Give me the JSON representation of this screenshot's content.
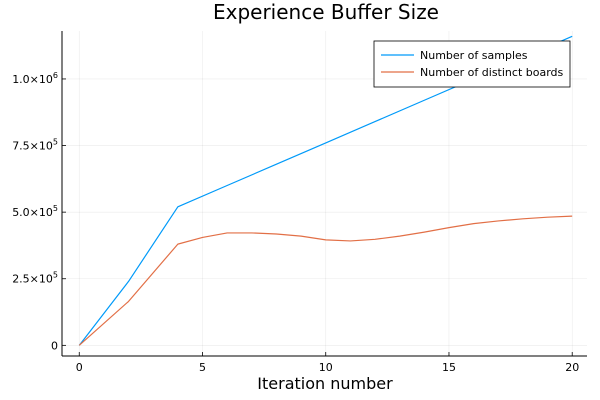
{
  "chart_data": {
    "type": "line",
    "title": "Experience Buffer Size",
    "xlabel": "Iteration number",
    "ylabel": "",
    "xlim": [
      -0.7,
      20.6
    ],
    "ylim": [
      -40000,
      1180000
    ],
    "xticks": [
      {
        "value": 0,
        "label": "0"
      },
      {
        "value": 5,
        "label": "5"
      },
      {
        "value": 10,
        "label": "10"
      },
      {
        "value": 15,
        "label": "15"
      },
      {
        "value": 20,
        "label": "20"
      }
    ],
    "yticks": [
      {
        "value": 0,
        "mant": "0",
        "exp": ""
      },
      {
        "value": 250000,
        "mant": "2.5×10",
        "exp": "5"
      },
      {
        "value": 500000,
        "mant": "5.0×10",
        "exp": "5"
      },
      {
        "value": 750000,
        "mant": "7.5×10",
        "exp": "5"
      },
      {
        "value": 1000000,
        "mant": "1.0×10",
        "exp": "6"
      }
    ],
    "grid": true,
    "legend_position": "top-right",
    "series": [
      {
        "name": "Number of samples",
        "color": "#009af9",
        "x": [
          0,
          2,
          4,
          6,
          8,
          10,
          12,
          14,
          16,
          18,
          20
        ],
        "y": [
          0,
          240000,
          520000,
          600000,
          680000,
          760000,
          840000,
          920000,
          1000000,
          1080000,
          1160000
        ]
      },
      {
        "name": "Number of distinct boards",
        "color": "#e26f46",
        "x": [
          0,
          2,
          4,
          5,
          6,
          7,
          8,
          9,
          10,
          11,
          12,
          13,
          14,
          15,
          16,
          17,
          18,
          19,
          20
        ],
        "y": [
          0,
          165000,
          380000,
          405000,
          422000,
          422000,
          418000,
          410000,
          396000,
          392000,
          398000,
          410000,
          425000,
          442000,
          457000,
          467000,
          475000,
          481000,
          485000
        ]
      }
    ]
  }
}
